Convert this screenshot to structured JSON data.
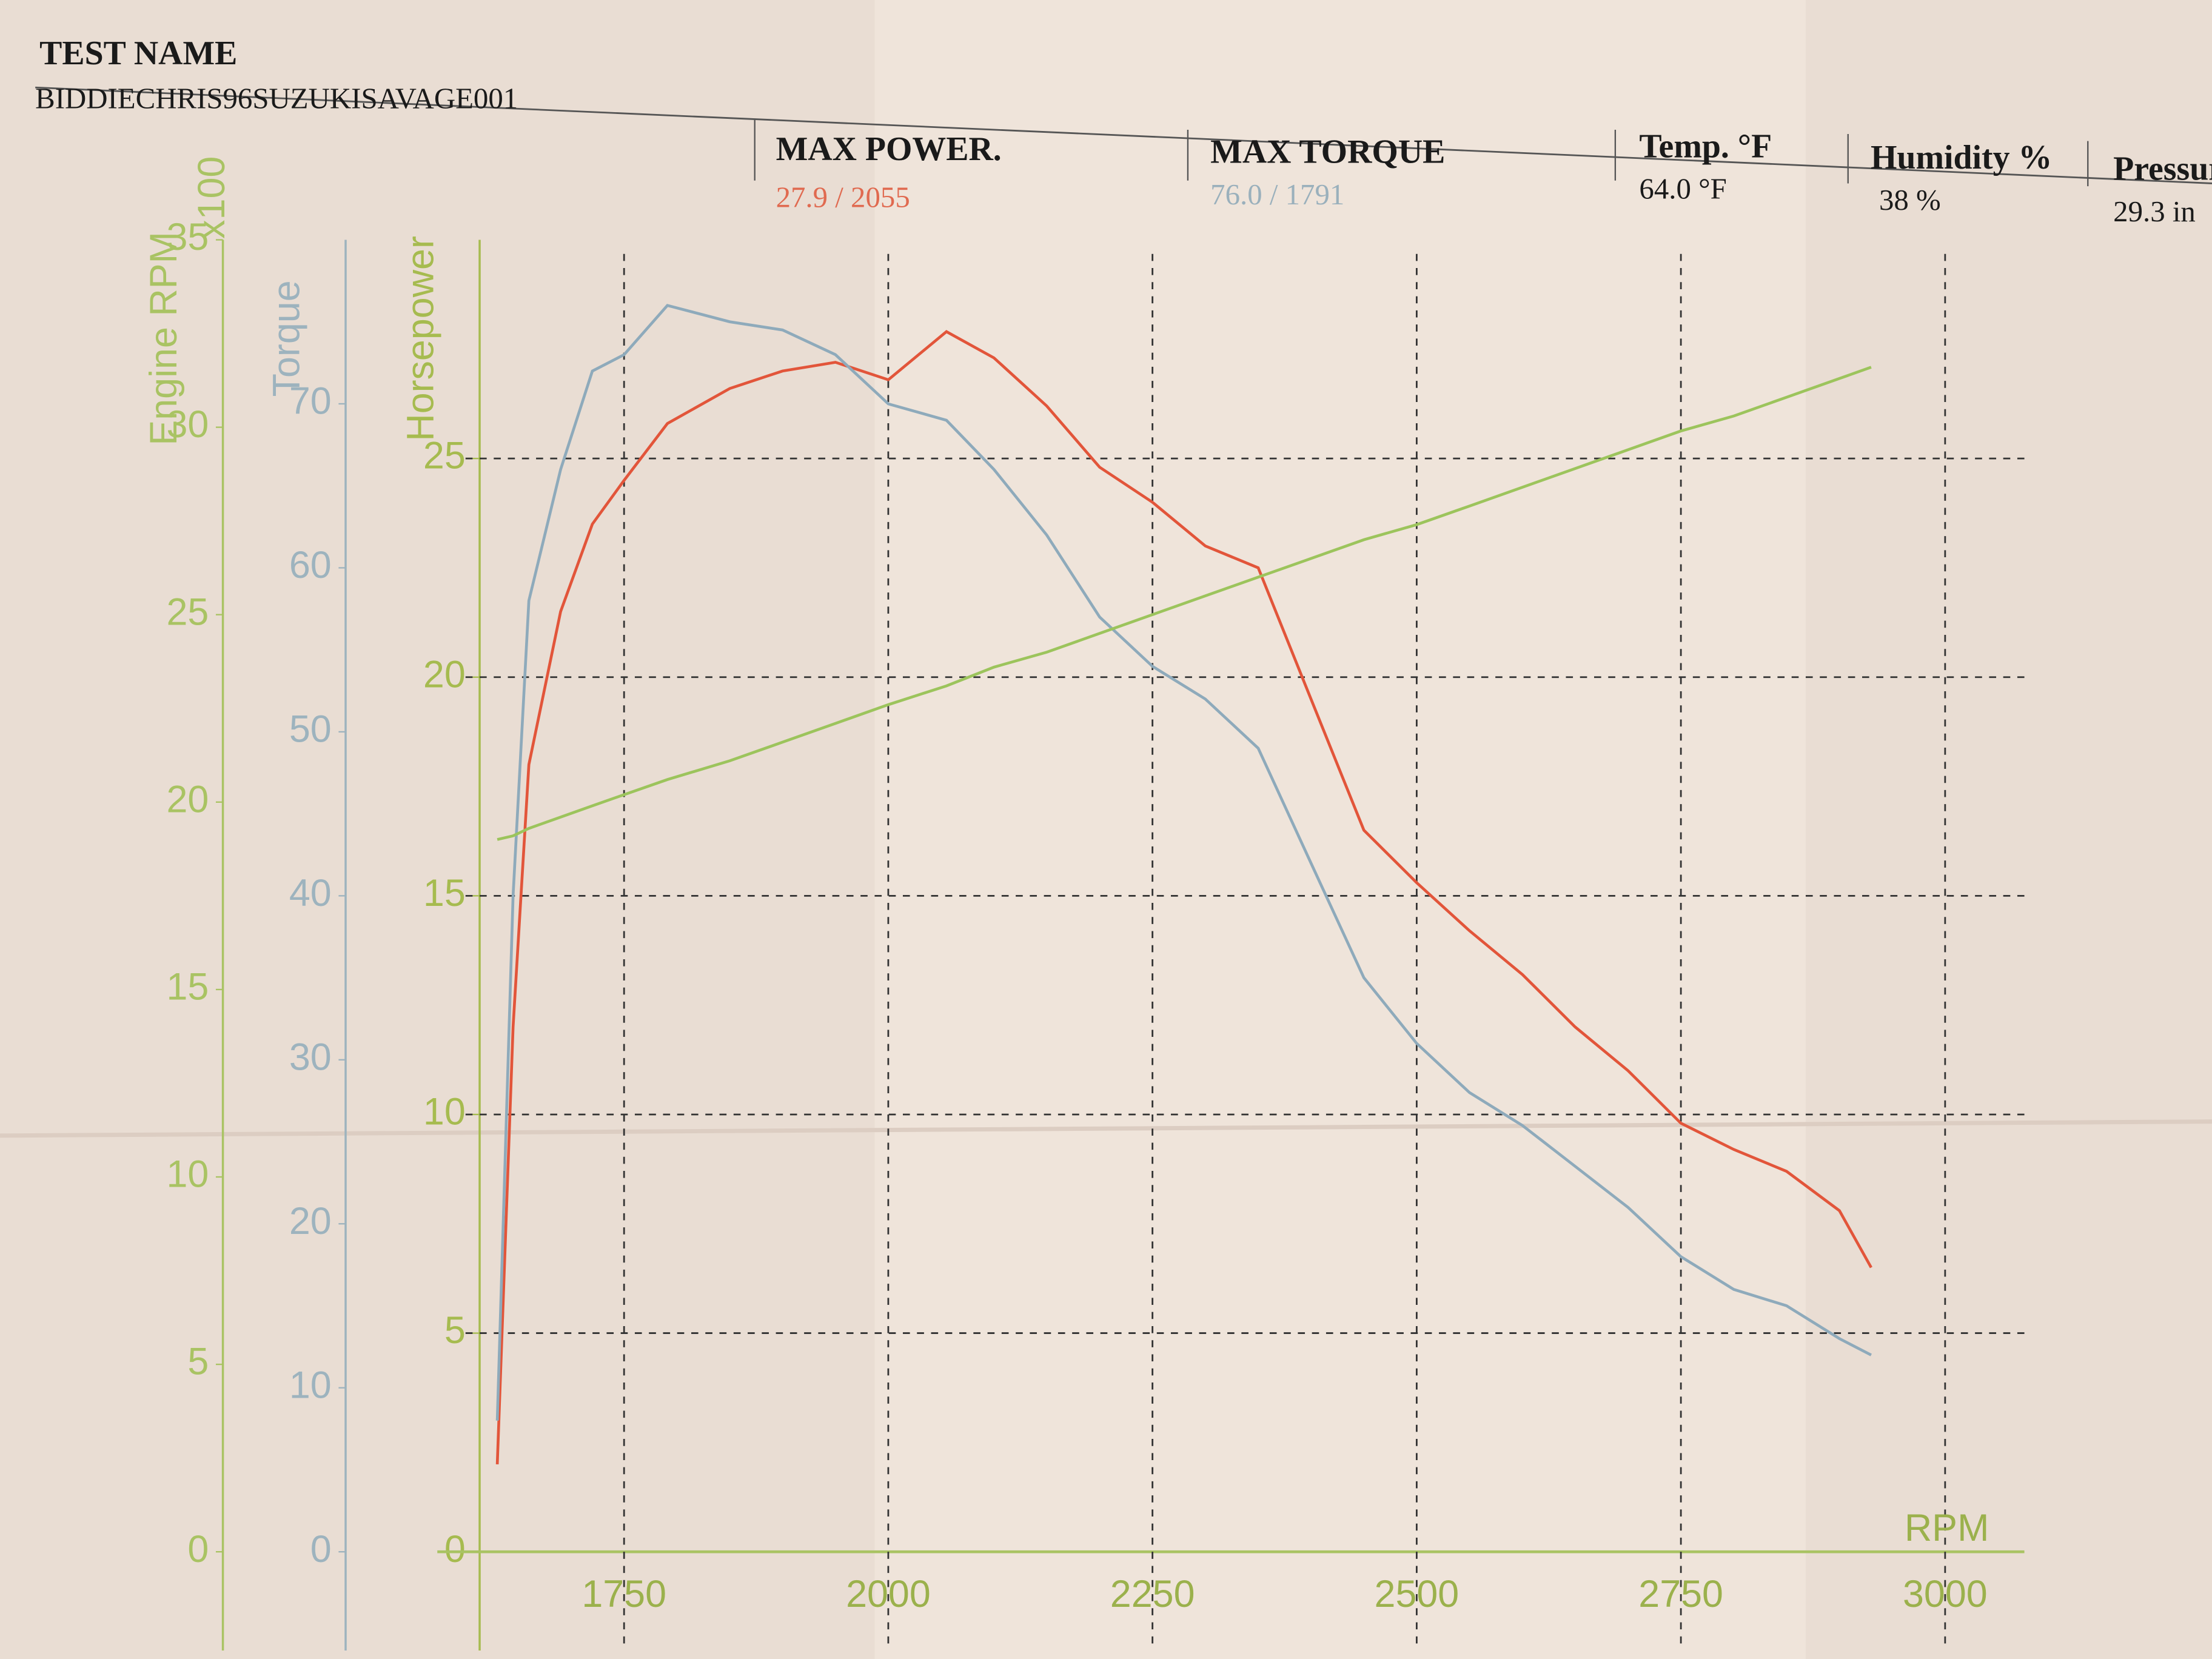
{
  "header": {
    "test_name_label": "TEST NAME",
    "test_name": "BIDDIECHRIS96SUZUKISAVAGE001",
    "max_power_label": "MAX POWER.",
    "max_power": "27.9 / 2055",
    "max_torque_label": "MAX TORQUE",
    "max_torque": "76.0 / 1791",
    "temp_label": "Temp. °F",
    "temp": "64.0 °F",
    "humidity_label": "Humidity %",
    "humidity": "38 %",
    "pressure_label": "Pressure",
    "pressure": "29.3 in"
  },
  "chart_data": {
    "type": "line",
    "xlabel": "RPM",
    "y3_unit": "x100",
    "x": [
      1630,
      1645,
      1660,
      1690,
      1720,
      1750,
      1791,
      1850,
      1900,
      1950,
      2000,
      2055,
      2100,
      2150,
      2200,
      2250,
      2300,
      2350,
      2400,
      2450,
      2500,
      2550,
      2600,
      2650,
      2700,
      2750,
      2800,
      2850,
      2900,
      2930
    ],
    "xlim": [
      1600,
      3075
    ],
    "xticks": [
      1750,
      2000,
      2250,
      2500,
      2750,
      3000
    ],
    "ylim": [
      0,
      30
    ],
    "yticks": [
      0,
      5,
      10,
      15,
      20,
      25
    ],
    "y2lim": [
      0,
      80
    ],
    "y2ticks": [
      0,
      10,
      20,
      30,
      40,
      50,
      60,
      70
    ],
    "y3lim": [
      0,
      35
    ],
    "y3ticks": [
      0,
      5,
      10,
      15,
      20,
      25,
      30,
      35
    ],
    "grid": true,
    "series": [
      {
        "name": "Horsepower",
        "color": "#e2553a",
        "axis": "y",
        "values": [
          2,
          12,
          18,
          21.5,
          23.5,
          24.5,
          25.8,
          26.6,
          27,
          27.2,
          26.8,
          27.9,
          27.3,
          26.2,
          24.8,
          24,
          23,
          22.5,
          19.5,
          16.5,
          15.3,
          14.2,
          13.2,
          12,
          11,
          9.8,
          9.2,
          8.7,
          7.8,
          6.5
        ]
      },
      {
        "name": "Torque",
        "color": "#8eaabb",
        "axis": "y2",
        "values": [
          8,
          40,
          58,
          66,
          72,
          73,
          76,
          75,
          74.5,
          73,
          70,
          69,
          66,
          62,
          57,
          54,
          52,
          49,
          42,
          35,
          31,
          28,
          26,
          23.5,
          21,
          18,
          16,
          15,
          13,
          12
        ]
      },
      {
        "name": "Engine RPM",
        "color": "#9cc45c",
        "axis": "y3",
        "values": [
          19,
          19.1,
          19.3,
          19.6,
          19.9,
          20.2,
          20.6,
          21.1,
          21.6,
          22.1,
          22.6,
          23.1,
          23.6,
          24,
          24.5,
          25,
          25.5,
          26,
          26.5,
          27,
          27.4,
          27.9,
          28.4,
          28.9,
          29.4,
          29.9,
          30.3,
          30.8,
          31.3,
          31.6
        ]
      }
    ]
  }
}
